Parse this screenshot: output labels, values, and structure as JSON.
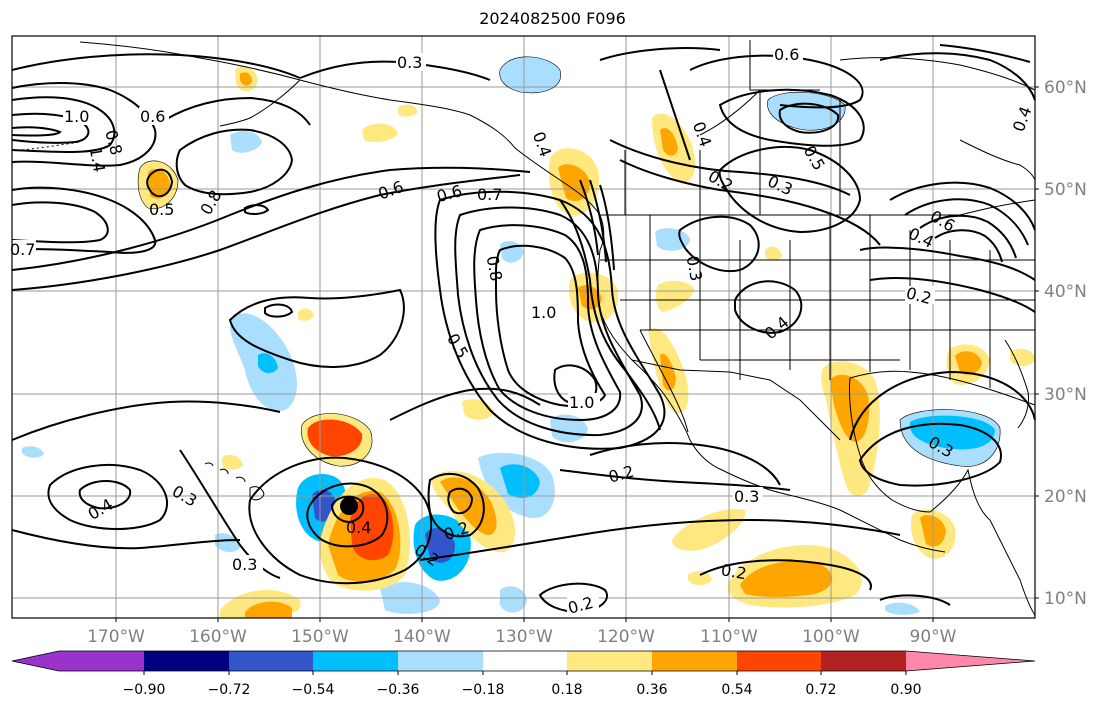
{
  "title": "2024082500 F096",
  "longitude_labels": [
    "170°W",
    "160°W",
    "150°W",
    "140°W",
    "130°W",
    "120°W",
    "110°W",
    "100°W",
    "90°W"
  ],
  "latitude_labels": [
    "60°N",
    "50°N",
    "40°N",
    "30°N",
    "20°N",
    "10°N"
  ],
  "colorbar": {
    "ticks": [
      "−0.90",
      "−0.72",
      "−0.54",
      "−0.36",
      "−0.18",
      "0.18",
      "0.36",
      "0.54",
      "0.72",
      "0.90"
    ],
    "colors": [
      "#9933cc",
      "#000080",
      "#3355cc",
      "#00bfff",
      "#aadeff",
      "#ffffff",
      "#ffe880",
      "#ffa500",
      "#ff4500",
      "#b22222",
      "#ff88aa"
    ]
  },
  "contour_labels": [
    "0.3",
    "0.6",
    "1.0",
    "0.8",
    "0.6",
    "1.4",
    "0.5",
    "0.8",
    "0.7",
    "0.6",
    "0.6",
    "0.7",
    "0.4",
    "0.4",
    "0.2",
    "0.3",
    "0.5",
    "0.4",
    "0.4",
    "0.6",
    "0.2",
    "0.8",
    "0.3",
    "1.0",
    "0.5",
    "0.4",
    "1.0",
    "0.2",
    "0.3",
    "0.3",
    "0.4",
    "0.3",
    "0.4",
    "0.2",
    "0.3",
    "0.2",
    "0.2"
  ],
  "storm_marker": "tropical cyclone position"
}
